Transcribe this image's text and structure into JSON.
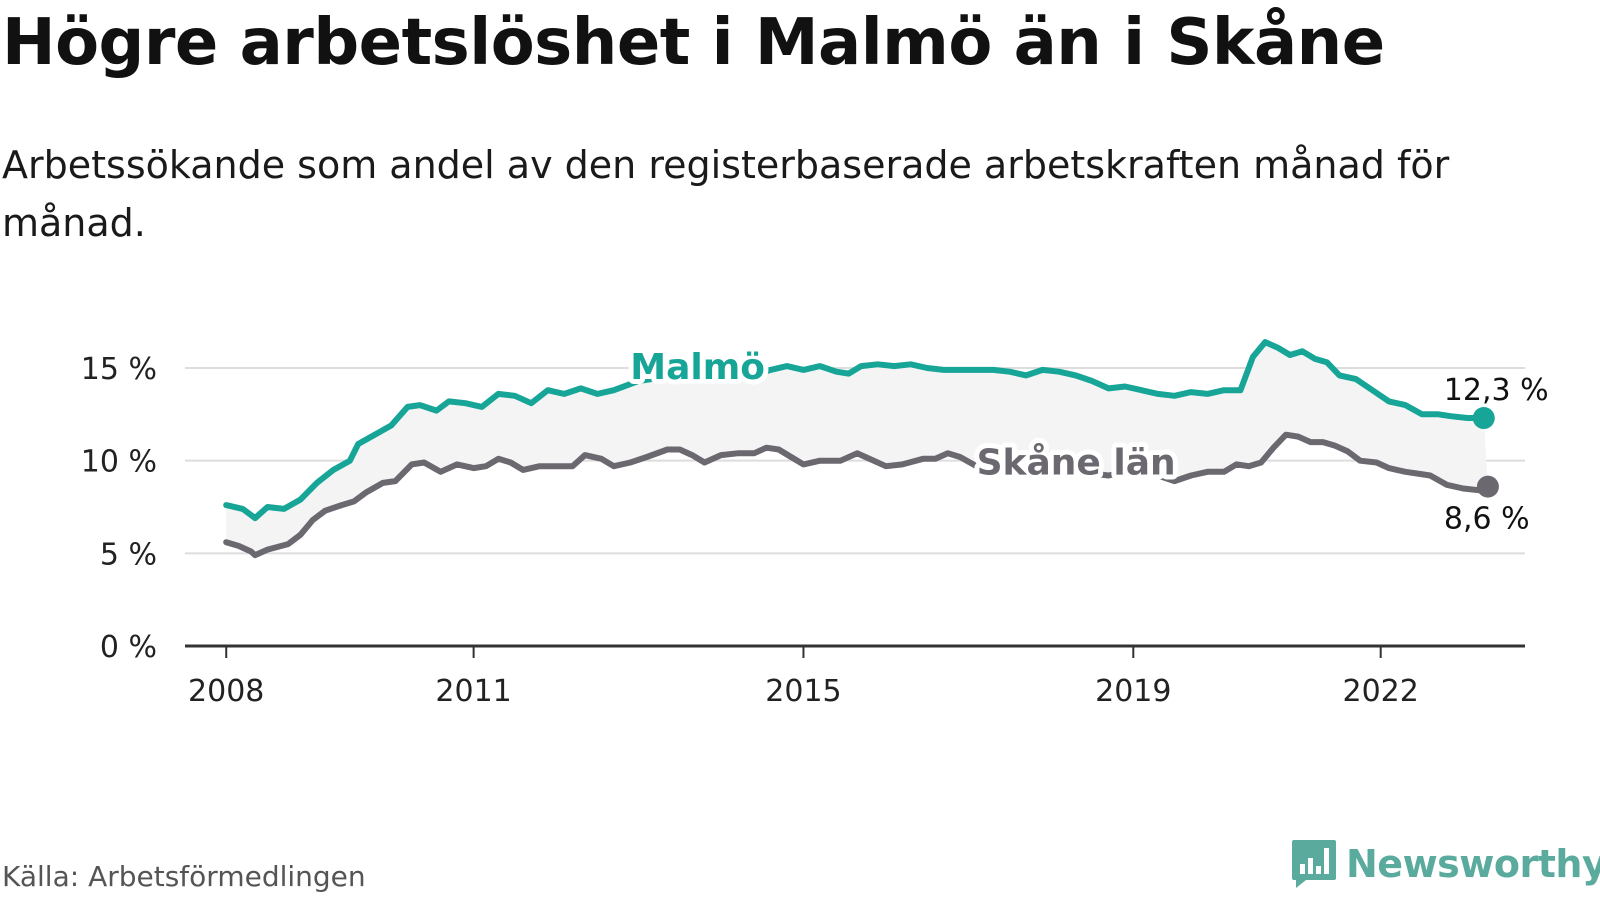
{
  "title": "Högre arbetslöshet i Malmö än i Skåne",
  "subtitle": "Arbetssökande som andel av den registerbaserade arbetskraften månad för månad.",
  "source": "Källa: Arbetsförmedlingen",
  "logo": {
    "text": "Newsworthy",
    "icon": "bar-chart-icon"
  },
  "colors": {
    "malmo": "#17a598",
    "skane": "#6b6870",
    "band": "#f4f4f5",
    "grid": "#dddddd",
    "axis": "#333333"
  },
  "chart_data": {
    "type": "line",
    "title": "Högre arbetslöshet i Malmö än i Skåne",
    "ylabel": "",
    "xlabel": "",
    "ylim": [
      0,
      15
    ],
    "xlim": [
      2007.5,
      2023.75
    ],
    "y_ticks": [
      {
        "value": 0,
        "label": "0 %"
      },
      {
        "value": 5,
        "label": "5 %"
      },
      {
        "value": 10,
        "label": "10 %"
      },
      {
        "value": 15,
        "label": "15 %"
      }
    ],
    "x_ticks": [
      {
        "value": 2008,
        "label": "2008"
      },
      {
        "value": 2011,
        "label": "2011"
      },
      {
        "value": 2015,
        "label": "2015"
      },
      {
        "value": 2019,
        "label": "2019"
      },
      {
        "value": 2022,
        "label": "2022"
      }
    ],
    "series": [
      {
        "name": "Malmö",
        "key": "malmo",
        "end_label": "12,3 %",
        "points": [
          [
            2008.0,
            7.6
          ],
          [
            2008.2,
            7.4
          ],
          [
            2008.35,
            6.9
          ],
          [
            2008.5,
            7.5
          ],
          [
            2008.7,
            7.4
          ],
          [
            2008.9,
            7.9
          ],
          [
            2009.1,
            8.8
          ],
          [
            2009.3,
            9.5
          ],
          [
            2009.5,
            10.0
          ],
          [
            2009.6,
            10.9
          ],
          [
            2009.8,
            11.4
          ],
          [
            2010.0,
            11.9
          ],
          [
            2010.2,
            12.9
          ],
          [
            2010.35,
            13.0
          ],
          [
            2010.55,
            12.7
          ],
          [
            2010.7,
            13.2
          ],
          [
            2010.9,
            13.1
          ],
          [
            2011.1,
            12.9
          ],
          [
            2011.3,
            13.6
          ],
          [
            2011.5,
            13.5
          ],
          [
            2011.7,
            13.1
          ],
          [
            2011.9,
            13.8
          ],
          [
            2012.1,
            13.6
          ],
          [
            2012.3,
            13.9
          ],
          [
            2012.5,
            13.6
          ],
          [
            2012.7,
            13.8
          ],
          [
            2013.0,
            14.3
          ],
          [
            2013.3,
            14.5
          ],
          [
            2013.6,
            15.0
          ],
          [
            2013.9,
            15.5
          ],
          [
            2014.0,
            15.4
          ],
          [
            2014.2,
            15.0
          ],
          [
            2014.4,
            14.6
          ],
          [
            2014.6,
            14.9
          ],
          [
            2014.8,
            15.1
          ],
          [
            2015.0,
            14.9
          ],
          [
            2015.2,
            15.1
          ],
          [
            2015.4,
            14.8
          ],
          [
            2015.55,
            14.7
          ],
          [
            2015.7,
            15.1
          ],
          [
            2015.9,
            15.2
          ],
          [
            2016.1,
            15.1
          ],
          [
            2016.3,
            15.2
          ],
          [
            2016.5,
            15.0
          ],
          [
            2016.7,
            14.9
          ],
          [
            2016.9,
            14.9
          ],
          [
            2017.1,
            14.9
          ],
          [
            2017.3,
            14.9
          ],
          [
            2017.5,
            14.8
          ],
          [
            2017.7,
            14.6
          ],
          [
            2017.9,
            14.9
          ],
          [
            2018.1,
            14.8
          ],
          [
            2018.3,
            14.6
          ],
          [
            2018.5,
            14.3
          ],
          [
            2018.7,
            13.9
          ],
          [
            2018.9,
            14.0
          ],
          [
            2019.1,
            13.8
          ],
          [
            2019.3,
            13.6
          ],
          [
            2019.5,
            13.5
          ],
          [
            2019.7,
            13.7
          ],
          [
            2019.9,
            13.6
          ],
          [
            2020.1,
            13.8
          ],
          [
            2020.3,
            13.8
          ],
          [
            2020.45,
            15.6
          ],
          [
            2020.6,
            16.4
          ],
          [
            2020.75,
            16.1
          ],
          [
            2020.9,
            15.7
          ],
          [
            2021.05,
            15.9
          ],
          [
            2021.2,
            15.5
          ],
          [
            2021.35,
            15.3
          ],
          [
            2021.5,
            14.6
          ],
          [
            2021.7,
            14.4
          ],
          [
            2021.9,
            13.8
          ],
          [
            2022.1,
            13.2
          ],
          [
            2022.3,
            13.0
          ],
          [
            2022.5,
            12.5
          ],
          [
            2022.7,
            12.5
          ],
          [
            2022.85,
            12.4
          ],
          [
            2023.05,
            12.3
          ],
          [
            2023.25,
            12.3
          ]
        ],
        "label_at": [
          2012.9,
          14.4
        ]
      },
      {
        "name": "Skåne län",
        "key": "skane",
        "end_label": "8,6 %",
        "points": [
          [
            2008.0,
            5.6
          ],
          [
            2008.15,
            5.4
          ],
          [
            2008.3,
            5.1
          ],
          [
            2008.35,
            4.9
          ],
          [
            2008.5,
            5.2
          ],
          [
            2008.75,
            5.5
          ],
          [
            2008.9,
            6.0
          ],
          [
            2009.05,
            6.8
          ],
          [
            2009.2,
            7.3
          ],
          [
            2009.4,
            7.6
          ],
          [
            2009.55,
            7.8
          ],
          [
            2009.7,
            8.3
          ],
          [
            2009.9,
            8.8
          ],
          [
            2010.05,
            8.9
          ],
          [
            2010.25,
            9.8
          ],
          [
            2010.4,
            9.9
          ],
          [
            2010.6,
            9.4
          ],
          [
            2010.8,
            9.8
          ],
          [
            2011.0,
            9.6
          ],
          [
            2011.15,
            9.7
          ],
          [
            2011.3,
            10.1
          ],
          [
            2011.45,
            9.9
          ],
          [
            2011.6,
            9.5
          ],
          [
            2011.8,
            9.7
          ],
          [
            2012.0,
            9.7
          ],
          [
            2012.2,
            9.7
          ],
          [
            2012.35,
            10.3
          ],
          [
            2012.55,
            10.1
          ],
          [
            2012.7,
            9.7
          ],
          [
            2012.9,
            9.9
          ],
          [
            2013.1,
            10.2
          ],
          [
            2013.35,
            10.6
          ],
          [
            2013.5,
            10.6
          ],
          [
            2013.65,
            10.3
          ],
          [
            2013.8,
            9.9
          ],
          [
            2014.0,
            10.3
          ],
          [
            2014.2,
            10.4
          ],
          [
            2014.4,
            10.4
          ],
          [
            2014.55,
            10.7
          ],
          [
            2014.7,
            10.6
          ],
          [
            2014.85,
            10.2
          ],
          [
            2015.0,
            9.8
          ],
          [
            2015.2,
            10.0
          ],
          [
            2015.45,
            10.0
          ],
          [
            2015.65,
            10.4
          ],
          [
            2015.8,
            10.1
          ],
          [
            2016.0,
            9.7
          ],
          [
            2016.2,
            9.8
          ],
          [
            2016.45,
            10.1
          ],
          [
            2016.6,
            10.1
          ],
          [
            2016.75,
            10.4
          ],
          [
            2016.9,
            10.2
          ],
          [
            2017.1,
            9.7
          ],
          [
            2017.3,
            9.6
          ],
          [
            2017.5,
            9.8
          ],
          [
            2017.7,
            9.9
          ],
          [
            2017.9,
            9.8
          ],
          [
            2018.1,
            9.7
          ],
          [
            2018.3,
            9.5
          ],
          [
            2018.5,
            9.3
          ],
          [
            2018.7,
            9.2
          ],
          [
            2018.9,
            9.4
          ],
          [
            2019.1,
            9.5
          ],
          [
            2019.3,
            9.2
          ],
          [
            2019.5,
            8.9
          ],
          [
            2019.7,
            9.2
          ],
          [
            2019.9,
            9.4
          ],
          [
            2020.1,
            9.4
          ],
          [
            2020.25,
            9.8
          ],
          [
            2020.4,
            9.7
          ],
          [
            2020.55,
            9.9
          ],
          [
            2020.7,
            10.7
          ],
          [
            2020.85,
            11.4
          ],
          [
            2021.0,
            11.3
          ],
          [
            2021.15,
            11.0
          ],
          [
            2021.3,
            11.0
          ],
          [
            2021.45,
            10.8
          ],
          [
            2021.6,
            10.5
          ],
          [
            2021.75,
            10.0
          ],
          [
            2021.95,
            9.9
          ],
          [
            2022.1,
            9.6
          ],
          [
            2022.3,
            9.4
          ],
          [
            2022.45,
            9.3
          ],
          [
            2022.6,
            9.2
          ],
          [
            2022.8,
            8.7
          ],
          [
            2023.0,
            8.5
          ],
          [
            2023.2,
            8.4
          ],
          [
            2023.3,
            8.6
          ]
        ],
        "label_at": [
          2017.1,
          9.25
        ]
      }
    ]
  }
}
